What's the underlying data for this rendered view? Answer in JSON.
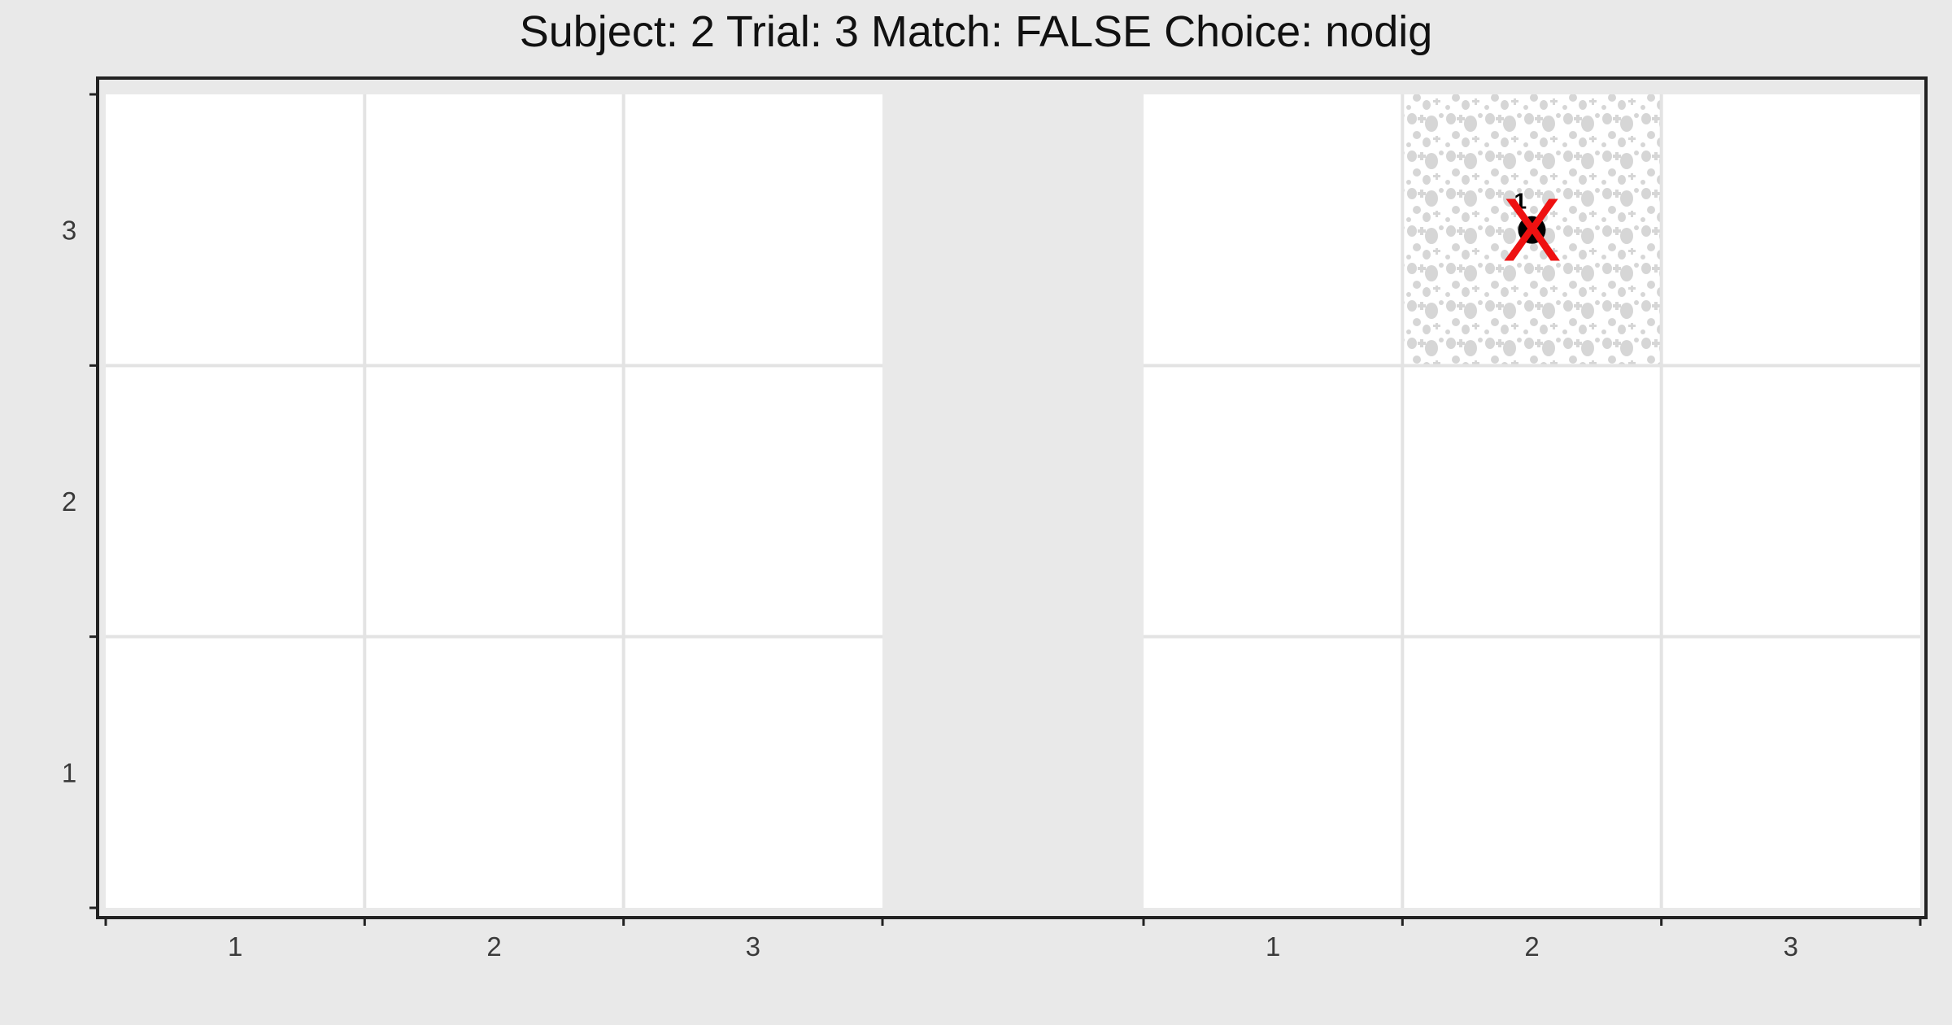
{
  "chart_data": {
    "type": "scatter",
    "title": "Subject:  2  Trial:  3  Match: FALSE  Choice: nodig",
    "xlabel": "",
    "ylabel": "",
    "panels": [
      {
        "x_ticks": [
          "1",
          "2",
          "3"
        ],
        "xlim": [
          0,
          3
        ],
        "ylim": [
          0,
          3
        ],
        "shaded_cells": [],
        "points": []
      },
      {
        "x_ticks": [
          "1",
          "2",
          "3"
        ],
        "xlim": [
          0,
          3
        ],
        "ylim": [
          0,
          3
        ],
        "shaded_cells": [
          {
            "col": 2,
            "row": 3
          }
        ],
        "points": [
          {
            "x": 1.5,
            "y": 2.5,
            "label": "1",
            "marker": "X"
          }
        ]
      }
    ],
    "y_ticks": [
      "1",
      "2",
      "3"
    ],
    "grid": true,
    "colors": {
      "background": "#e9e9e9",
      "panel": "#ffffff",
      "gridline": "#e3e3e3",
      "pattern": "#d6d6d6",
      "point": "#000000",
      "x_marker": "#ee1111",
      "axis": "#222222"
    }
  }
}
